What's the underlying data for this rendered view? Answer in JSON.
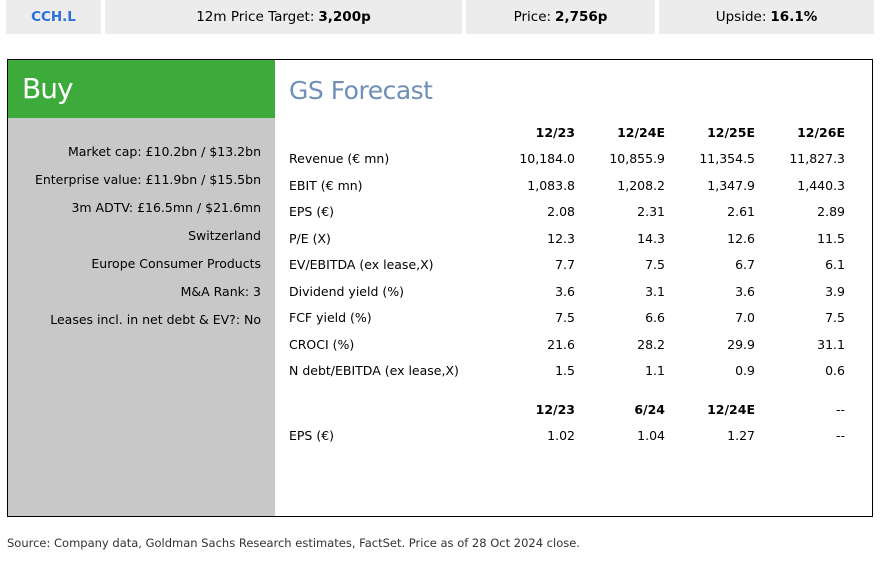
{
  "topbar": {
    "ticker": "CCH.L",
    "target_label": "12m Price Target:",
    "target_value": "3,200p",
    "price_label": "Price:",
    "price_value": "2,756p",
    "upside_label": "Upside:",
    "upside_value": "16.1%"
  },
  "rating": "Buy",
  "meta": [
    "Market cap: £10.2bn / $13.2bn",
    "Enterprise value: £11.9bn / $15.5bn",
    "3m ADTV: £16.5mn / $21.6mn",
    "Switzerland",
    "Europe Consumer Products",
    "M&A Rank: 3",
    "Leases incl. in net debt & EV?: No"
  ],
  "forecast": {
    "title": "GS Forecast",
    "columns": [
      "12/23",
      "12/24E",
      "12/25E",
      "12/26E"
    ],
    "rows": [
      {
        "label": "Revenue (€ mn)",
        "values": [
          "10,184.0",
          "10,855.9",
          "11,354.5",
          "11,827.3"
        ]
      },
      {
        "label": "EBIT (€ mn)",
        "values": [
          "1,083.8",
          "1,208.2",
          "1,347.9",
          "1,440.3"
        ]
      },
      {
        "label": "EPS (€)",
        "values": [
          "2.08",
          "2.31",
          "2.61",
          "2.89"
        ]
      },
      {
        "label": "P/E (X)",
        "values": [
          "12.3",
          "14.3",
          "12.6",
          "11.5"
        ]
      },
      {
        "label": "EV/EBITDA (ex lease,X)",
        "values": [
          "7.7",
          "7.5",
          "6.7",
          "6.1"
        ]
      },
      {
        "label": "Dividend yield (%)",
        "values": [
          "3.6",
          "3.1",
          "3.6",
          "3.9"
        ]
      },
      {
        "label": "FCF yield (%)",
        "values": [
          "7.5",
          "6.6",
          "7.0",
          "7.5"
        ]
      },
      {
        "label": "CROCI (%)",
        "values": [
          "21.6",
          "28.2",
          "29.9",
          "31.1"
        ]
      },
      {
        "label": "N debt/EBITDA (ex lease,X)",
        "values": [
          "1.5",
          "1.1",
          "0.9",
          "0.6"
        ]
      }
    ],
    "interim_columns": [
      "12/23",
      "6/24",
      "12/24E",
      "--"
    ],
    "interim_rows": [
      {
        "label": "EPS (€)",
        "values": [
          "1.02",
          "1.04",
          "1.27",
          "--"
        ]
      }
    ]
  },
  "source": "Source: Company data, Goldman Sachs Research estimates, FactSet. Price as of 28 Oct 2024 close."
}
